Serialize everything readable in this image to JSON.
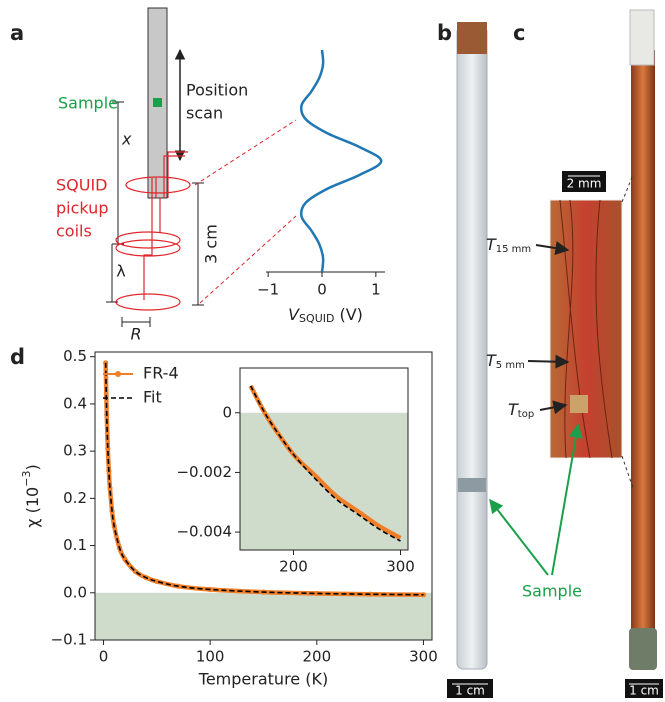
{
  "panel_labels": [
    "a",
    "b",
    "c",
    "d"
  ],
  "diagram": {
    "sample": "Sample",
    "position_scan": [
      "Position",
      "scan"
    ],
    "x": "x",
    "coils": [
      "SQUID",
      "pickup",
      "coils"
    ],
    "height": "3 cm",
    "lambda": "λ",
    "radius": "R"
  },
  "photos": {
    "scale_b": "1 cm",
    "scale_c": "1 cm",
    "scale_inset": "2 mm",
    "thermometers": [
      {
        "symbol": "T",
        "subscript": "15 mm"
      },
      {
        "symbol": "T",
        "subscript": "5 mm"
      },
      {
        "symbol": "T",
        "subscript": "top"
      }
    ],
    "sample": "Sample"
  },
  "chart_data": [
    {
      "type": "line",
      "orientation": "vertical",
      "xlabel": {
        "symbol": "V",
        "subscript": "SQUID",
        "unit": "(V)"
      },
      "values": [
        0,
        0.02,
        -0.05,
        -0.2,
        -0.38,
        -0.3,
        0.1,
        0.7,
        1.1,
        0.7,
        0.1,
        -0.3,
        -0.38,
        -0.2,
        -0.05,
        0.02,
        0
      ],
      "color": "#1f77b4",
      "xlim": [
        -1.04,
        1.17
      ],
      "xticks": [
        {
          "value": -1,
          "label": "−1"
        },
        0,
        1
      ]
    },
    {
      "type": "line",
      "xlabel": "Temperature (K)",
      "ylabel": {
        "symbol": "χ (10",
        "superscript": "−3",
        "close": ")"
      },
      "x": [
        2,
        3,
        4,
        5,
        6,
        8,
        10,
        15,
        20,
        30,
        40,
        50,
        70,
        100,
        150,
        200,
        250,
        300
      ],
      "series": [
        {
          "name": "FR-4",
          "color": "#f07f2a",
          "marker": true,
          "values": [
            0.487,
            0.377,
            0.306,
            0.258,
            0.222,
            0.173,
            0.141,
            0.095,
            0.071,
            0.045,
            0.032,
            0.024,
            0.014,
            0.007,
            0.0015,
            -0.0014,
            -0.0031,
            -0.0042
          ]
        },
        {
          "name": "Fit",
          "color": "#000000",
          "dash": true,
          "values": [
            0.487,
            0.377,
            0.306,
            0.258,
            0.222,
            0.173,
            0.141,
            0.095,
            0.071,
            0.045,
            0.032,
            0.024,
            0.014,
            0.007,
            0.0015,
            -0.0014,
            -0.0031,
            -0.0042
          ]
        }
      ],
      "xlim": [
        -8,
        308
      ],
      "ylim": [
        -0.1,
        0.51
      ],
      "xticks": [
        0,
        100,
        200,
        300
      ],
      "yticks": [
        {
          "value": -0.1,
          "label": "−0.1"
        },
        {
          "value": 0,
          "label": "0.0"
        },
        0.1,
        0.2,
        0.3,
        0.4,
        0.5
      ],
      "shade_color": "#cfdccc",
      "legend": "upper left"
    },
    {
      "type": "line",
      "x": [
        160,
        170,
        180,
        200,
        220,
        240,
        260,
        280,
        300
      ],
      "series": [
        {
          "color": "#f07f2a",
          "values": [
            0.0009,
            0.0002,
            -0.0004,
            -0.0014,
            -0.0021,
            -0.0028,
            -0.0033,
            -0.0038,
            -0.0042
          ]
        },
        {
          "color": "#000000",
          "dash": true,
          "values": [
            0.0009,
            0.0002,
            -0.0004,
            -0.0014,
            -0.0022,
            -0.0029,
            -0.0034,
            -0.0039,
            -0.0043
          ]
        }
      ],
      "xlim": [
        150,
        307
      ],
      "ylim": [
        -0.0046,
        0.0015
      ],
      "xticks": [
        200,
        300
      ],
      "yticks": [
        0,
        {
          "value": -0.002,
          "label": "−0.002"
        },
        {
          "value": -0.004,
          "label": "−0.004"
        }
      ],
      "shade_color": "#cfdccc"
    }
  ]
}
